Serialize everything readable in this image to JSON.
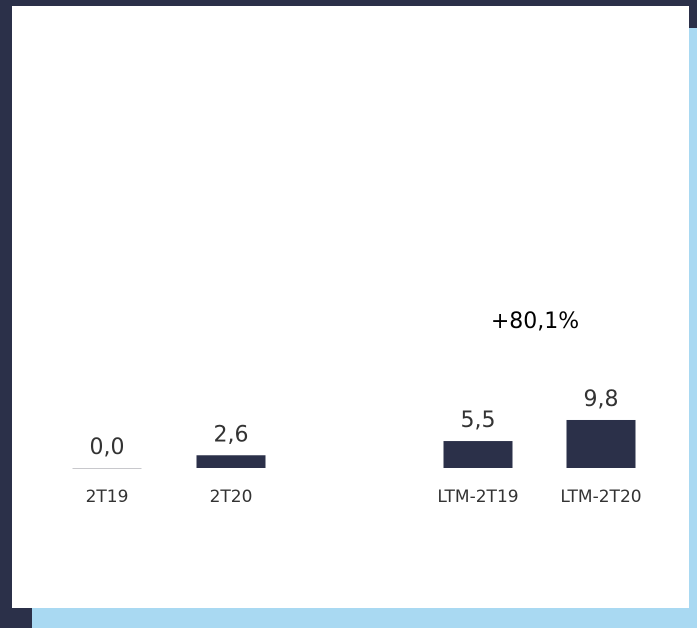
{
  "colors": {
    "bar": "#2b3049",
    "baseline": "#c8c8cc",
    "text": "#333333",
    "background_frame": "#2b3049",
    "accent": "#a9d9f2",
    "panel": "#ffffff"
  },
  "chart_data": {
    "type": "bar",
    "categories": [
      "2T19",
      "2T20",
      "LTM-2T19",
      "LTM-2T20"
    ],
    "values": [
      0.0,
      2.6,
      5.5,
      9.8
    ],
    "value_labels": [
      "0,0",
      "2,6",
      "5,5",
      "9,8"
    ],
    "annotations": [
      {
        "text": "+80,1%",
        "between": [
          "LTM-2T19",
          "LTM-2T20"
        ]
      }
    ],
    "title": "",
    "xlabel": "",
    "ylabel": "",
    "ylim": [
      0,
      10
    ],
    "grid": false,
    "legend": "none"
  }
}
